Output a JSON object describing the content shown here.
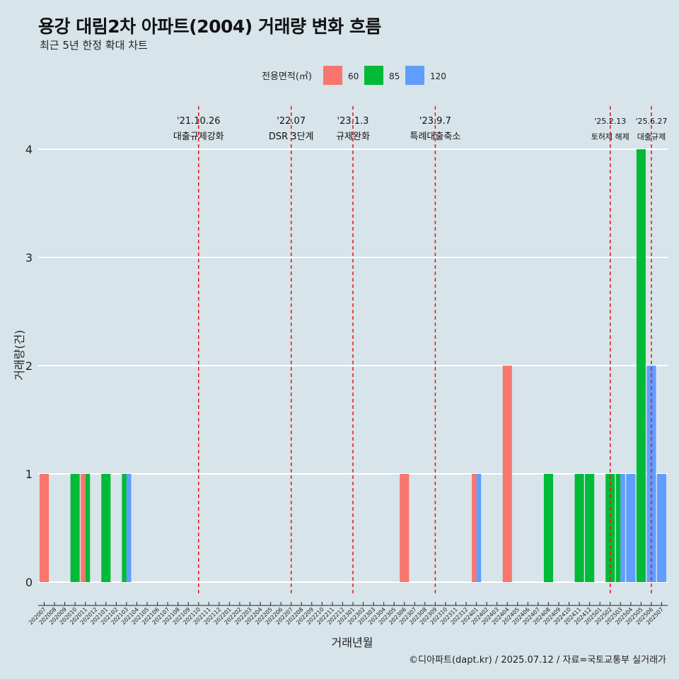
{
  "chart_data": {
    "type": "bar",
    "title": "용강 대림2차 아파트(2004) 거래량 변화 흐름",
    "subtitle": "최근 5년 한정 확대 차트",
    "xlabel": "거래년월",
    "ylabel": "거래량(건)",
    "caption": "©디아파트(dapt.kr) / 2025.07.12 / 자료=국토교통부 실거래가",
    "legend_title": "전용면적(㎡)",
    "ylim": [
      0,
      4
    ],
    "yticks": [
      "0",
      "1",
      "2",
      "3",
      "4"
    ],
    "categories": [
      "202007",
      "202008",
      "202009",
      "202010",
      "202011",
      "202012",
      "202101",
      "202102",
      "202103",
      "202104",
      "202105",
      "202106",
      "202107",
      "202108",
      "202109",
      "202110",
      "202111",
      "202112",
      "202201",
      "202202",
      "202203",
      "202204",
      "202205",
      "202206",
      "202207",
      "202208",
      "202209",
      "202210",
      "202211",
      "202212",
      "202301",
      "202302",
      "202303",
      "202304",
      "202305",
      "202306",
      "202307",
      "202308",
      "202309",
      "202310",
      "202311",
      "202312",
      "202401",
      "202402",
      "202403",
      "202404",
      "202405",
      "202406",
      "202407",
      "202408",
      "202409",
      "202410",
      "202411",
      "202412",
      "202501",
      "202502",
      "202503",
      "202504",
      "202505",
      "202506",
      "202507"
    ],
    "series": [
      {
        "name": "60",
        "color": "#f8766d",
        "values": [
          1,
          0,
          0,
          0,
          1,
          0,
          0,
          0,
          0,
          0,
          0,
          0,
          0,
          0,
          0,
          0,
          0,
          0,
          0,
          0,
          0,
          0,
          0,
          0,
          0,
          0,
          0,
          0,
          0,
          0,
          0,
          0,
          0,
          0,
          0,
          1,
          0,
          0,
          0,
          0,
          0,
          0,
          1,
          0,
          0,
          2,
          0,
          0,
          0,
          0,
          0,
          0,
          0,
          0,
          0,
          0,
          0,
          0,
          0,
          0,
          0
        ]
      },
      {
        "name": "85",
        "color": "#00ba38",
        "values": [
          0,
          0,
          0,
          1,
          1,
          0,
          1,
          0,
          1,
          0,
          0,
          0,
          0,
          0,
          0,
          0,
          0,
          0,
          0,
          0,
          0,
          0,
          0,
          0,
          0,
          0,
          0,
          0,
          0,
          0,
          0,
          0,
          0,
          0,
          0,
          0,
          0,
          0,
          0,
          0,
          0,
          0,
          0,
          0,
          0,
          0,
          0,
          0,
          0,
          1,
          0,
          0,
          1,
          1,
          0,
          1,
          1,
          0,
          4,
          0,
          0
        ]
      },
      {
        "name": "120",
        "color": "#619cff",
        "values": [
          0,
          0,
          0,
          0,
          0,
          0,
          0,
          0,
          1,
          0,
          0,
          0,
          0,
          0,
          0,
          0,
          0,
          0,
          0,
          0,
          0,
          0,
          0,
          0,
          0,
          0,
          0,
          0,
          0,
          0,
          0,
          0,
          0,
          0,
          0,
          0,
          0,
          0,
          0,
          0,
          0,
          0,
          1,
          0,
          0,
          0,
          0,
          0,
          0,
          0,
          0,
          0,
          0,
          0,
          0,
          0,
          1,
          1,
          0,
          2,
          1
        ]
      }
    ],
    "events": [
      {
        "month": "202110",
        "date": "'21.10.26",
        "label": "대출규제강화"
      },
      {
        "month": "202207",
        "date": "'22.07",
        "label": "DSR 3단계"
      },
      {
        "month": "202301",
        "date": "'23.1.3",
        "label": "규제완화"
      },
      {
        "month": "202309",
        "date": "'23.9.7",
        "label": "특례대출축소"
      },
      {
        "month": "202502",
        "date": "'25.2.13",
        "label": "토허제 해제"
      },
      {
        "month": "202506",
        "date": "'25.6.27",
        "label": "대출규제"
      }
    ]
  }
}
